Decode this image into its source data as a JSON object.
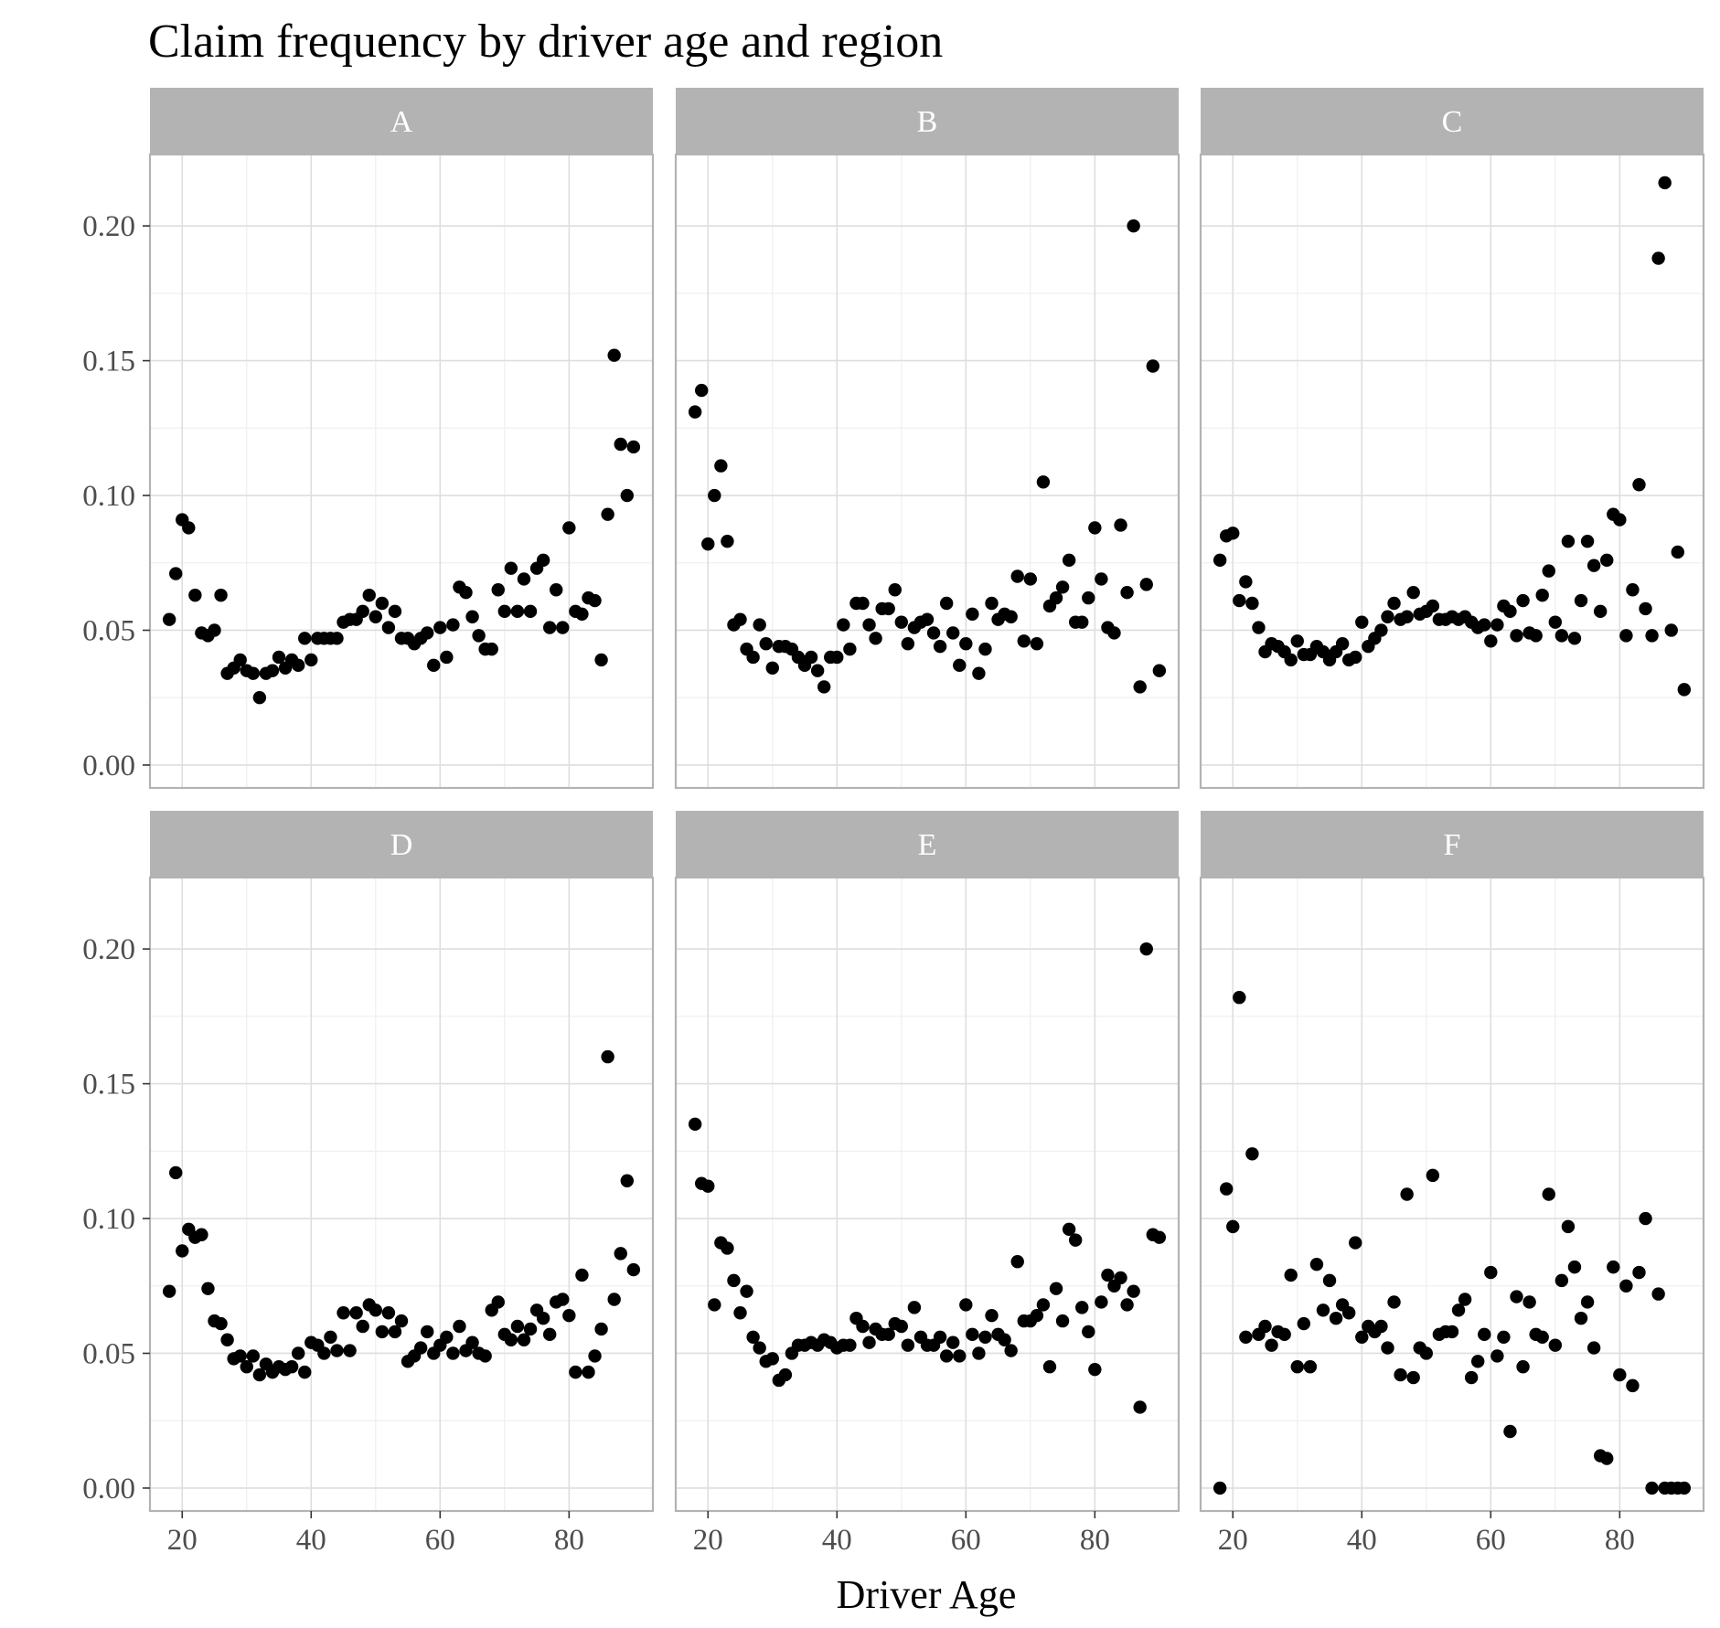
{
  "chart_data": {
    "type": "scatter",
    "title": "Claim frequency by driver age and region",
    "xlabel": "Driver Age",
    "ylabel": "",
    "xlim": [
      15,
      93
    ],
    "ylim": [
      -0.0085,
      0.2265
    ],
    "x_ticks": [
      20,
      40,
      60,
      80
    ],
    "y_ticks": [
      0.0,
      0.05,
      0.1,
      0.15,
      0.2
    ],
    "y_tick_labels": [
      "0.00",
      "0.05",
      "0.10",
      "0.15",
      "0.20"
    ],
    "grid": true,
    "legend": "none",
    "point_color": "#000000",
    "strip_color": "#b3b3b3",
    "panels": [
      {
        "name": "A",
        "x": [
          18,
          19,
          20,
          21,
          22,
          23,
          24,
          25,
          26,
          27,
          28,
          29,
          30,
          31,
          32,
          33,
          34,
          35,
          36,
          37,
          38,
          39,
          40,
          41,
          42,
          43,
          44,
          45,
          46,
          47,
          48,
          49,
          50,
          51,
          52,
          53,
          54,
          55,
          56,
          57,
          58,
          59,
          60,
          61,
          62,
          63,
          64,
          65,
          66,
          67,
          68,
          69,
          70,
          71,
          72,
          73,
          74,
          75,
          76,
          77,
          78,
          79,
          80,
          81,
          82,
          83,
          84,
          85,
          86,
          87,
          88,
          89,
          90
        ],
        "y": [
          0.054,
          0.071,
          0.091,
          0.088,
          0.063,
          0.049,
          0.048,
          0.05,
          0.063,
          0.034,
          0.036,
          0.039,
          0.035,
          0.034,
          0.025,
          0.034,
          0.035,
          0.04,
          0.036,
          0.039,
          0.037,
          0.047,
          0.039,
          0.047,
          0.047,
          0.047,
          0.047,
          0.053,
          0.054,
          0.054,
          0.057,
          0.063,
          0.055,
          0.06,
          0.051,
          0.057,
          0.047,
          0.047,
          0.045,
          0.047,
          0.049,
          0.037,
          0.051,
          0.04,
          0.052,
          0.066,
          0.064,
          0.055,
          0.048,
          0.043,
          0.043,
          0.065,
          0.057,
          0.073,
          0.057,
          0.069,
          0.057,
          0.073,
          0.076,
          0.051,
          0.065,
          0.051,
          0.088,
          0.057,
          0.056,
          0.062,
          0.061,
          0.039,
          0.093,
          0.152,
          0.119,
          0.1,
          0.118
        ]
      },
      {
        "name": "B",
        "x": [
          18,
          19,
          20,
          21,
          22,
          23,
          24,
          25,
          26,
          27,
          28,
          29,
          30,
          31,
          32,
          33,
          34,
          35,
          36,
          37,
          38,
          39,
          40,
          41,
          42,
          43,
          44,
          45,
          46,
          47,
          48,
          49,
          50,
          51,
          52,
          53,
          54,
          55,
          56,
          57,
          58,
          59,
          60,
          61,
          62,
          63,
          64,
          65,
          66,
          67,
          68,
          69,
          70,
          71,
          72,
          73,
          74,
          75,
          76,
          77,
          78,
          79,
          80,
          81,
          82,
          83,
          84,
          85,
          86,
          87,
          88,
          89,
          90
        ],
        "y": [
          0.131,
          0.139,
          0.082,
          0.1,
          0.111,
          0.083,
          0.052,
          0.054,
          0.043,
          0.04,
          0.052,
          0.045,
          0.036,
          0.044,
          0.044,
          0.043,
          0.04,
          0.037,
          0.04,
          0.035,
          0.029,
          0.04,
          0.04,
          0.052,
          0.043,
          0.06,
          0.06,
          0.052,
          0.047,
          0.058,
          0.058,
          0.065,
          0.053,
          0.045,
          0.051,
          0.053,
          0.054,
          0.049,
          0.044,
          0.06,
          0.049,
          0.037,
          0.045,
          0.056,
          0.034,
          0.043,
          0.06,
          0.054,
          0.056,
          0.055,
          0.07,
          0.046,
          0.069,
          0.045,
          0.105,
          0.059,
          0.062,
          0.066,
          0.076,
          0.053,
          0.053,
          0.062,
          0.088,
          0.069,
          0.051,
          0.049,
          0.089,
          0.064,
          0.2,
          0.029,
          0.067,
          0.148,
          0.035
        ]
      },
      {
        "name": "C",
        "x": [
          18,
          19,
          20,
          21,
          22,
          23,
          24,
          25,
          26,
          27,
          28,
          29,
          30,
          31,
          32,
          33,
          34,
          35,
          36,
          37,
          38,
          39,
          40,
          41,
          42,
          43,
          44,
          45,
          46,
          47,
          48,
          49,
          50,
          51,
          52,
          53,
          54,
          55,
          56,
          57,
          58,
          59,
          60,
          61,
          62,
          63,
          64,
          65,
          66,
          67,
          68,
          69,
          70,
          71,
          72,
          73,
          74,
          75,
          76,
          77,
          78,
          79,
          80,
          81,
          82,
          83,
          84,
          85,
          86,
          87,
          88,
          89,
          90
        ],
        "y": [
          0.076,
          0.085,
          0.086,
          0.061,
          0.068,
          0.06,
          0.051,
          0.042,
          0.045,
          0.044,
          0.042,
          0.039,
          0.046,
          0.041,
          0.041,
          0.044,
          0.042,
          0.039,
          0.042,
          0.045,
          0.039,
          0.04,
          0.053,
          0.044,
          0.047,
          0.05,
          0.055,
          0.06,
          0.054,
          0.055,
          0.064,
          0.056,
          0.057,
          0.059,
          0.054,
          0.054,
          0.055,
          0.054,
          0.055,
          0.053,
          0.051,
          0.052,
          0.046,
          0.052,
          0.059,
          0.057,
          0.048,
          0.061,
          0.049,
          0.048,
          0.063,
          0.072,
          0.053,
          0.048,
          0.083,
          0.047,
          0.061,
          0.083,
          0.074,
          0.057,
          0.076,
          0.093,
          0.091,
          0.048,
          0.065,
          0.104,
          0.058,
          0.048,
          0.188,
          0.216,
          0.05,
          0.079,
          0.028
        ]
      },
      {
        "name": "D",
        "x": [
          18,
          19,
          20,
          21,
          22,
          23,
          24,
          25,
          26,
          27,
          28,
          29,
          30,
          31,
          32,
          33,
          34,
          35,
          36,
          37,
          38,
          39,
          40,
          41,
          42,
          43,
          44,
          45,
          46,
          47,
          48,
          49,
          50,
          51,
          52,
          53,
          54,
          55,
          56,
          57,
          58,
          59,
          60,
          61,
          62,
          63,
          64,
          65,
          66,
          67,
          68,
          69,
          70,
          71,
          72,
          73,
          74,
          75,
          76,
          77,
          78,
          79,
          80,
          81,
          82,
          83,
          84,
          85,
          86,
          87,
          88,
          89,
          90
        ],
        "y": [
          0.073,
          0.117,
          0.088,
          0.096,
          0.093,
          0.094,
          0.074,
          0.062,
          0.061,
          0.055,
          0.048,
          0.049,
          0.045,
          0.049,
          0.042,
          0.046,
          0.043,
          0.045,
          0.044,
          0.045,
          0.05,
          0.043,
          0.054,
          0.053,
          0.05,
          0.056,
          0.051,
          0.065,
          0.051,
          0.065,
          0.06,
          0.068,
          0.066,
          0.058,
          0.065,
          0.058,
          0.062,
          0.047,
          0.049,
          0.052,
          0.058,
          0.05,
          0.053,
          0.056,
          0.05,
          0.06,
          0.051,
          0.054,
          0.05,
          0.049,
          0.066,
          0.069,
          0.057,
          0.055,
          0.06,
          0.055,
          0.059,
          0.066,
          0.063,
          0.057,
          0.069,
          0.07,
          0.064,
          0.043,
          0.079,
          0.043,
          0.049,
          0.059,
          0.16,
          0.07,
          0.087,
          0.114,
          0.081
        ]
      },
      {
        "name": "E",
        "x": [
          18,
          19,
          20,
          21,
          22,
          23,
          24,
          25,
          26,
          27,
          28,
          29,
          30,
          31,
          32,
          33,
          34,
          35,
          36,
          37,
          38,
          39,
          40,
          41,
          42,
          43,
          44,
          45,
          46,
          47,
          48,
          49,
          50,
          51,
          52,
          53,
          54,
          55,
          56,
          57,
          58,
          59,
          60,
          61,
          62,
          63,
          64,
          65,
          66,
          67,
          68,
          69,
          70,
          71,
          72,
          73,
          74,
          75,
          76,
          77,
          78,
          79,
          80,
          81,
          82,
          83,
          84,
          85,
          86,
          87,
          88,
          89,
          90
        ],
        "y": [
          0.135,
          0.113,
          0.112,
          0.068,
          0.091,
          0.089,
          0.077,
          0.065,
          0.073,
          0.056,
          0.052,
          0.047,
          0.048,
          0.04,
          0.042,
          0.05,
          0.053,
          0.053,
          0.054,
          0.053,
          0.055,
          0.054,
          0.052,
          0.053,
          0.053,
          0.063,
          0.06,
          0.054,
          0.059,
          0.057,
          0.057,
          0.061,
          0.06,
          0.053,
          0.067,
          0.056,
          0.053,
          0.053,
          0.056,
          0.049,
          0.054,
          0.049,
          0.068,
          0.057,
          0.05,
          0.056,
          0.064,
          0.057,
          0.055,
          0.051,
          0.084,
          0.062,
          0.062,
          0.064,
          0.068,
          0.045,
          0.074,
          0.062,
          0.096,
          0.092,
          0.067,
          0.058,
          0.044,
          0.069,
          0.079,
          0.075,
          0.078,
          0.068,
          0.073,
          0.03,
          0.2,
          0.094,
          0.093
        ]
      },
      {
        "name": "F",
        "x": [
          18,
          19,
          20,
          21,
          22,
          23,
          24,
          25,
          26,
          27,
          28,
          29,
          30,
          31,
          32,
          33,
          34,
          35,
          36,
          37,
          38,
          39,
          40,
          41,
          42,
          43,
          44,
          45,
          46,
          47,
          48,
          49,
          50,
          51,
          52,
          53,
          54,
          55,
          56,
          57,
          58,
          59,
          60,
          61,
          62,
          63,
          64,
          65,
          66,
          67,
          68,
          69,
          70,
          71,
          72,
          73,
          74,
          75,
          76,
          77,
          78,
          79,
          80,
          81,
          82,
          83,
          84,
          85,
          86,
          87,
          88,
          89,
          90
        ],
        "y": [
          0.0,
          0.111,
          0.097,
          0.182,
          0.056,
          0.124,
          0.057,
          0.06,
          0.053,
          0.058,
          0.057,
          0.079,
          0.045,
          0.061,
          0.045,
          0.083,
          0.066,
          0.077,
          0.063,
          0.068,
          0.065,
          0.091,
          0.056,
          0.06,
          0.058,
          0.06,
          0.052,
          0.069,
          0.042,
          0.109,
          0.041,
          0.052,
          0.05,
          0.116,
          0.057,
          0.058,
          0.058,
          0.066,
          0.07,
          0.041,
          0.047,
          0.057,
          0.08,
          0.049,
          0.056,
          0.021,
          0.071,
          0.045,
          0.069,
          0.057,
          0.056,
          0.109,
          0.053,
          0.077,
          0.097,
          0.082,
          0.063,
          0.069,
          0.052,
          0.012,
          0.011,
          0.082,
          0.042,
          0.075,
          0.038,
          0.08,
          0.1,
          0.0,
          0.072,
          0.0,
          0.0,
          0.0,
          0.0
        ]
      }
    ]
  }
}
